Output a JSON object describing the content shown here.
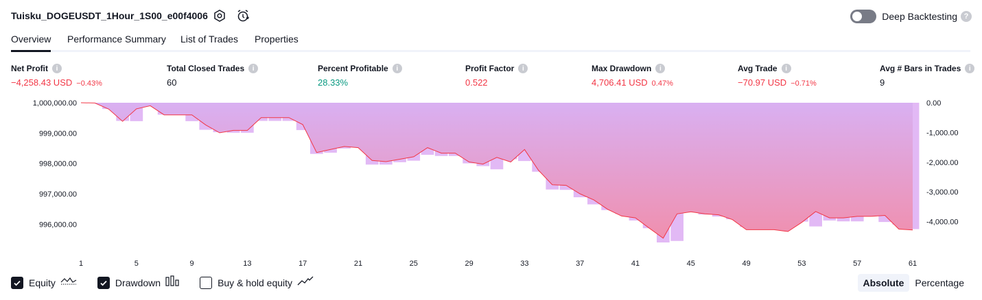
{
  "header": {
    "title": "Tuisku_DOGEUSDT_1Hour_1S00_e00f4006",
    "deep_backtesting_label": "Deep Backtesting",
    "deep_backtesting_on": false
  },
  "tabs": [
    {
      "label": "Overview",
      "active": true
    },
    {
      "label": "Performance Summary",
      "active": false
    },
    {
      "label": "List of Trades",
      "active": false
    },
    {
      "label": "Properties",
      "active": false
    }
  ],
  "metrics": [
    {
      "label": "Net Profit",
      "value": "−4,258.43 USD",
      "pct": "−0.43%",
      "tone": "neg"
    },
    {
      "label": "Total Closed Trades",
      "value": "60",
      "pct": "",
      "tone": "neu"
    },
    {
      "label": "Percent Profitable",
      "value": "28.33%",
      "pct": "",
      "tone": "pos"
    },
    {
      "label": "Profit Factor",
      "value": "0.522",
      "pct": "",
      "tone": "neg"
    },
    {
      "label": "Max Drawdown",
      "value": "4,706.41 USD",
      "pct": "0.47%",
      "tone": "neg"
    },
    {
      "label": "Avg Trade",
      "value": "−70.97 USD",
      "pct": "−0.71%",
      "tone": "neg"
    },
    {
      "label": "Avg # Bars in Trades",
      "value": "9",
      "pct": "",
      "tone": "neu"
    }
  ],
  "legend": {
    "equity_label": "Equity",
    "equity_checked": true,
    "drawdown_label": "Drawdown",
    "drawdown_checked": true,
    "buyhold_label": "Buy & hold equity",
    "buyhold_checked": false
  },
  "scale_switch": {
    "absolute_label": "Absolute",
    "percentage_label": "Percentage",
    "active": "Absolute"
  },
  "colors": {
    "equity_line": "#f23645",
    "drawdown_bar": "#e2b9f5",
    "area_top": "#d9b0f2",
    "area_bottom": "#f08fae",
    "positive": "#089981",
    "negative": "#f23645"
  },
  "chart_data": {
    "type": "area",
    "x_ticks": [
      "1",
      "5",
      "9",
      "13",
      "17",
      "21",
      "25",
      "29",
      "33",
      "37",
      "41",
      "45",
      "49",
      "53",
      "57",
      "61"
    ],
    "y_left_ticks": [
      "1,000,000.00",
      "999,000.00",
      "998,000.00",
      "997,000.00",
      "996,000.00"
    ],
    "y_left_range": [
      995400,
      1000000
    ],
    "y_right_ticks": [
      "0.00",
      "-1,000.00",
      "-2,000.00",
      "-3,000.00",
      "-4,000.00"
    ],
    "y_right_range": [
      -4700,
      0
    ],
    "x": [
      1,
      2,
      3,
      4,
      5,
      6,
      7,
      8,
      9,
      10,
      11,
      12,
      13,
      14,
      15,
      16,
      17,
      18,
      19,
      20,
      21,
      22,
      23,
      24,
      25,
      26,
      27,
      28,
      29,
      30,
      31,
      32,
      33,
      34,
      35,
      36,
      37,
      38,
      39,
      40,
      41,
      42,
      43,
      44,
      45,
      46,
      47,
      48,
      49,
      50,
      51,
      52,
      53,
      54,
      55,
      56,
      57,
      58,
      59,
      60,
      61
    ],
    "series": [
      {
        "name": "Equity",
        "values": [
          1000000,
          999990,
          999790,
          999390,
          999800,
          999900,
          999600,
          999600,
          999600,
          999270,
          999010,
          999090,
          999090,
          999510,
          999510,
          999510,
          999280,
          998360,
          998460,
          998560,
          998520,
          998100,
          998060,
          998140,
          998220,
          998520,
          998340,
          998340,
          998050,
          997980,
          998200,
          998050,
          998460,
          997780,
          997300,
          997280,
          997000,
          996800,
          996490,
          996270,
          996210,
          995870,
          995540,
          996340,
          996410,
          996340,
          996310,
          996150,
          995820,
          995820,
          995820,
          995760,
          996060,
          996420,
          996210,
          996210,
          996260,
          996260,
          996290,
          995840,
          995810
        ]
      },
      {
        "name": "Drawdown",
        "values": [
          0,
          -10,
          -210,
          -610,
          -620,
          -100,
          -400,
          -400,
          -620,
          -910,
          -990,
          -1010,
          -1010,
          -610,
          -610,
          -610,
          -920,
          -1720,
          -1680,
          -1540,
          -1480,
          -2080,
          -2080,
          -2000,
          -1950,
          -1750,
          -1790,
          -1790,
          -2040,
          -2130,
          -2240,
          -1900,
          -1960,
          -2320,
          -2920,
          -2930,
          -3180,
          -3420,
          -3610,
          -3740,
          -3960,
          -4220,
          -4700,
          -4650,
          -3660,
          -3760,
          -3830,
          -3920,
          -4180,
          -4180,
          -4180,
          -4200,
          -4000,
          -4160,
          -3960,
          -3990,
          -3990,
          -3760,
          -4010,
          -4100,
          -4250
        ]
      }
    ]
  }
}
